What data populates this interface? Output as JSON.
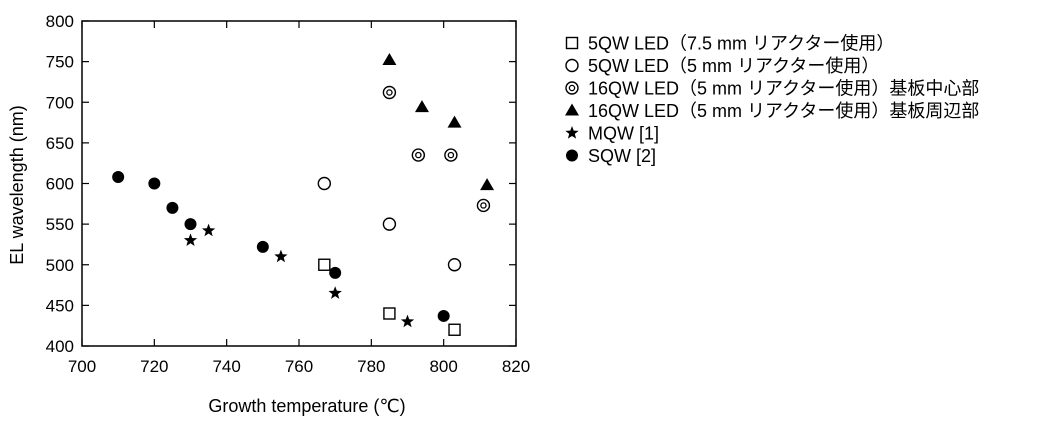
{
  "chart_data": {
    "type": "scatter",
    "title": "",
    "xlabel": "Growth temperature (℃)",
    "ylabel": "EL wavelength (nm)",
    "xlim": [
      700,
      820
    ],
    "ylim": [
      400,
      800
    ],
    "x_ticks": [
      700,
      720,
      740,
      760,
      780,
      800,
      820
    ],
    "y_ticks": [
      400,
      450,
      500,
      550,
      600,
      650,
      700,
      750,
      800
    ],
    "grid": false,
    "legend_position": "right",
    "series": [
      {
        "name": "5QW LED（7.5 mm リアクター使用）",
        "marker": "square-open",
        "points": [
          [
            767,
            500
          ],
          [
            785,
            440
          ],
          [
            803,
            420
          ]
        ]
      },
      {
        "name": "5QW LED（5 mm リアクター使用）",
        "marker": "circle-open",
        "points": [
          [
            767,
            600
          ],
          [
            785,
            550
          ],
          [
            803,
            500
          ]
        ]
      },
      {
        "name": "16QW LED（5 mm リアクター使用）基板中心部",
        "marker": "bullseye",
        "points": [
          [
            785,
            712
          ],
          [
            793,
            635
          ],
          [
            802,
            635
          ],
          [
            811,
            573
          ]
        ]
      },
      {
        "name": "16QW LED（5 mm リアクター使用）基板周辺部",
        "marker": "triangle-filled",
        "points": [
          [
            785,
            752
          ],
          [
            794,
            694
          ],
          [
            803,
            675
          ],
          [
            812,
            598
          ]
        ]
      },
      {
        "name": "MQW [1]",
        "marker": "star-filled",
        "points": [
          [
            730,
            530
          ],
          [
            735,
            542
          ],
          [
            755,
            510
          ],
          [
            770,
            465
          ],
          [
            790,
            430
          ]
        ]
      },
      {
        "name": "SQW [2]",
        "marker": "circle-filled",
        "points": [
          [
            710,
            608
          ],
          [
            720,
            600
          ],
          [
            725,
            570
          ],
          [
            730,
            550
          ],
          [
            750,
            522
          ],
          [
            770,
            490
          ],
          [
            800,
            437
          ]
        ]
      }
    ]
  }
}
